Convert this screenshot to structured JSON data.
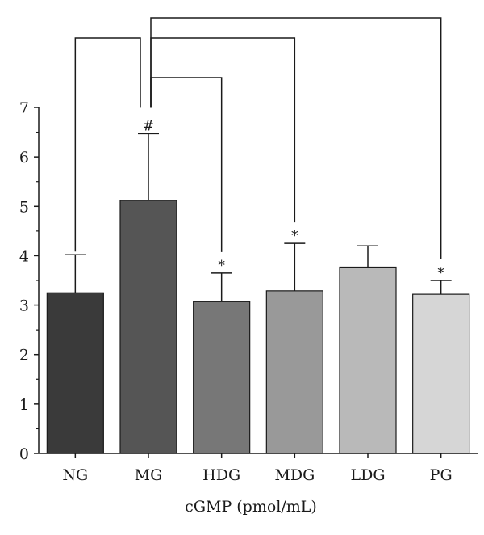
{
  "chart_data": {
    "type": "bar",
    "xlabel": "cGMP (pmol/mL)",
    "ylabel": "",
    "ylim": [
      0,
      7
    ],
    "yticks": [
      "0",
      "1",
      "2",
      "3",
      "4",
      "5",
      "6",
      "7"
    ],
    "grid": false,
    "categories": [
      "NG",
      "MG",
      "HDG",
      "MDG",
      "LDG",
      "PG"
    ],
    "values": [
      3.25,
      5.12,
      3.07,
      3.29,
      3.77,
      3.22
    ],
    "error": [
      0.77,
      1.35,
      0.58,
      0.96,
      0.43,
      0.28
    ],
    "colors": [
      "#3a3a3a",
      "#555555",
      "#777777",
      "#999999",
      "#b9b9b9",
      "#d6d6d6"
    ],
    "annotations": [
      "",
      "#",
      "*",
      "*",
      "",
      "*"
    ],
    "comparison_brackets": [
      {
        "from": "MG",
        "to": "NG"
      },
      {
        "from": "MG",
        "to": "HDG"
      },
      {
        "from": "MG",
        "to": "MDG"
      },
      {
        "from": "MG",
        "to": "PG"
      }
    ]
  }
}
